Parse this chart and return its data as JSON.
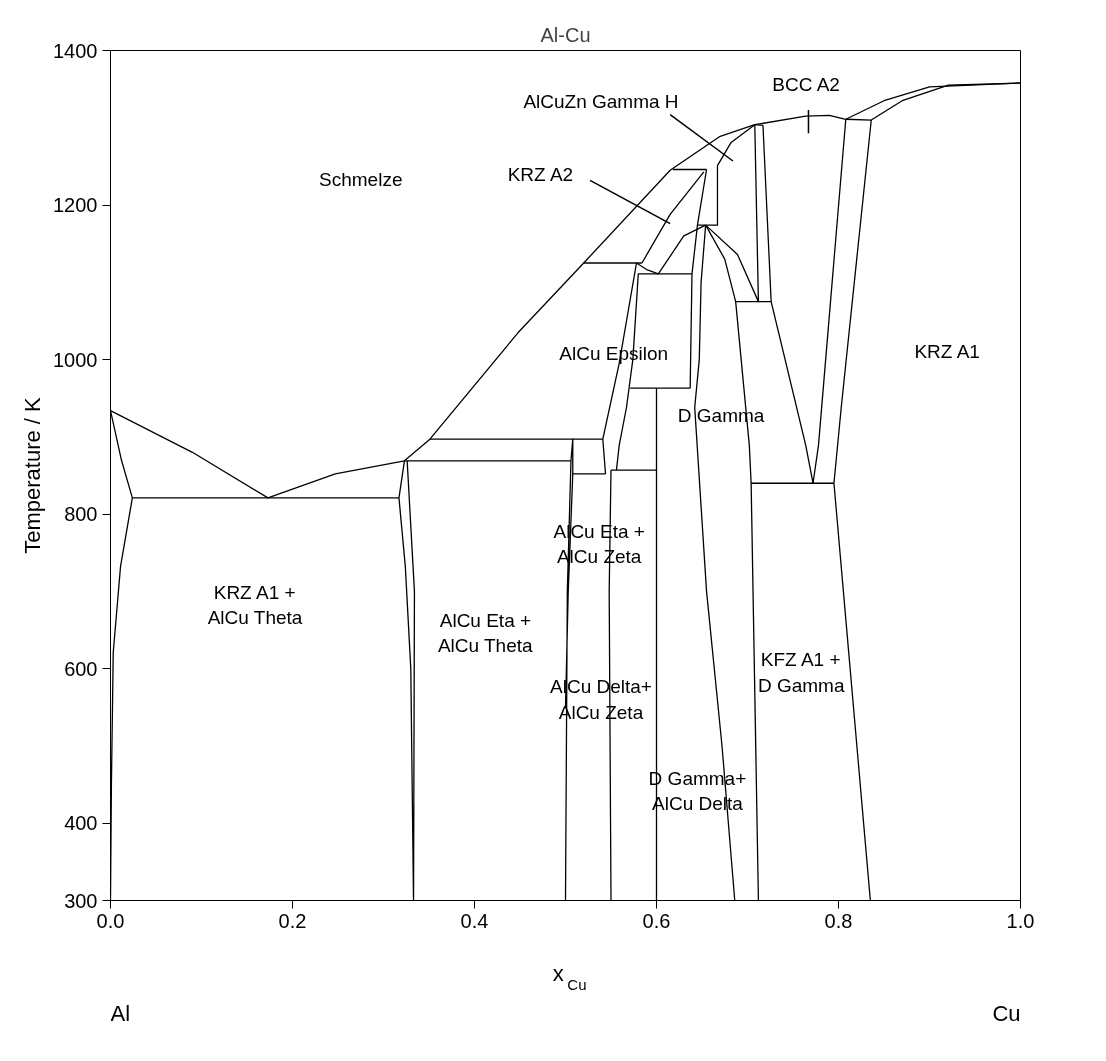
{
  "chart_data": {
    "type": "line",
    "title": "Al-Cu",
    "xlabel": "x$_{Cu}$",
    "ylabel": "Temperature / K",
    "xlim": [
      0,
      1
    ],
    "ylim": [
      300,
      1400
    ],
    "xticks": [
      {
        "value": 0,
        "label": "0.0"
      },
      0.2,
      0.4,
      0.6,
      0.8,
      {
        "value": 1,
        "label": "1.0"
      }
    ],
    "yticks": [
      300,
      400,
      600,
      800,
      1000,
      1200,
      1400
    ],
    "grid": false,
    "series": [
      {
        "color": "#000000",
        "x": [
          0,
          0.09,
          0.173,
          0.247,
          0.323,
          0.351,
          0.448,
          0.52,
          0.615,
          0.67,
          0.708,
          0.764,
          0.79,
          0.808,
          0.85,
          0.9,
          1.0
        ],
        "values": [
          934,
          880,
          821,
          852,
          869,
          897,
          1035,
          1125,
          1245,
          1289,
          1304,
          1315,
          1316,
          1311,
          1335,
          1353,
          1358
        ]
      },
      {
        "color": "#000000",
        "x": [
          0,
          0.012,
          0.024,
          0.011,
          0.003,
          0.001,
          0
        ],
        "values": [
          934,
          870,
          821,
          732,
          621,
          450,
          300
        ]
      },
      {
        "color": "#000000",
        "x": [
          0.024,
          0.317
        ],
        "values": [
          821,
          821
        ]
      },
      {
        "color": "#000000",
        "x": [
          0.808,
          0.836,
          0.87,
          0.92,
          1.0
        ],
        "values": [
          1311,
          1310,
          1335,
          1355,
          1358
        ]
      },
      {
        "color": "#000000",
        "x": [
          0.323,
          0.317,
          0.324,
          0.33,
          0.333,
          0.334,
          0.326
        ],
        "values": [
          869,
          821,
          732,
          600,
          300,
          700,
          869
        ]
      },
      {
        "color": "#000000",
        "x": [
          0.323,
          0.506
        ],
        "values": [
          869,
          869
        ]
      },
      {
        "color": "#000000",
        "x": [
          0.351,
          0.541
        ],
        "values": [
          897,
          897
        ]
      },
      {
        "color": "#000000",
        "x": [
          0.5,
          0.502,
          0.506,
          0.508,
          0.508,
          0.503,
          0.5
        ],
        "values": [
          300,
          700,
          869,
          897,
          852,
          700,
          550
        ]
      },
      {
        "color": "#000000",
        "x": [
          0.508,
          0.544
        ],
        "values": [
          852,
          852
        ]
      },
      {
        "color": "#000000",
        "x": [
          0.544,
          0.541,
          0.559,
          0.578
        ],
        "values": [
          852,
          897,
          995,
          1125
        ]
      },
      {
        "color": "#000000",
        "x": [
          0.55,
          0.6
        ],
        "values": [
          857,
          857
        ]
      },
      {
        "color": "#000000",
        "x": [
          0.55,
          0.548,
          0.55
        ],
        "values": [
          857,
          700,
          300
        ]
      },
      {
        "color": "#000000",
        "x": [
          0.6,
          0.6
        ],
        "values": [
          963,
          300
        ]
      },
      {
        "color": "#000000",
        "x": [
          0.556,
          0.559,
          0.567,
          0.574,
          0.58,
          0.639
        ],
        "values": [
          857,
          889,
          938,
          1000,
          1111,
          1111
        ]
      },
      {
        "color": "#000000",
        "x": [
          0.571,
          0.637
        ],
        "values": [
          963,
          963
        ]
      },
      {
        "color": "#000000",
        "x": [
          0.655,
          0.645,
          0.639,
          0.637
        ],
        "values": [
          1246,
          1174,
          1111,
          963
        ]
      },
      {
        "color": "#000000",
        "x": [
          0.52,
          0.584
        ],
        "values": [
          1125,
          1125
        ]
      },
      {
        "color": "#000000",
        "x": [
          0.578,
          0.59,
          0.602,
          0.63,
          0.654
        ],
        "values": [
          1125,
          1116,
          1111,
          1160,
          1174
        ]
      },
      {
        "color": "#000000",
        "x": [
          0.584,
          0.615,
          0.652
        ],
        "values": [
          1125,
          1188,
          1243
        ]
      },
      {
        "color": "#000000",
        "x": [
          0.618,
          0.655
        ],
        "values": [
          1246,
          1246
        ]
      },
      {
        "color": "#000000",
        "x": [
          0.645,
          0.667,
          0.667,
          0.682,
          0.708
        ],
        "values": [
          1174,
          1174,
          1251,
          1281,
          1304
        ]
      },
      {
        "color": "#000000",
        "x": [
          0.654,
          0.649,
          0.647,
          0.642,
          0.655,
          0.672,
          0.686
        ],
        "values": [
          1174,
          1100,
          1000,
          938,
          700,
          500,
          300
        ]
      },
      {
        "color": "#000000",
        "x": [
          0.654,
          0.689,
          0.712,
          0.708,
          0.717,
          0.726,
          0.764,
          0.772
        ],
        "values": [
          1174,
          1136,
          1075,
          1304,
          1303,
          1075,
          889,
          840
        ]
      },
      {
        "color": "#000000",
        "x": [
          0.654,
          0.675,
          0.687,
          0.702,
          0.704,
          0.712
        ],
        "values": [
          1174,
          1130,
          1075,
          889,
          840,
          300
        ]
      },
      {
        "color": "#000000",
        "x": [
          0.687,
          0.726
        ],
        "values": [
          1075,
          1075
        ]
      },
      {
        "color": "#000000",
        "x": [
          0.808,
          0.778,
          0.772
        ],
        "values": [
          1311,
          889,
          840
        ]
      },
      {
        "color": "#000000",
        "x": [
          0.836,
          0.803,
          0.795,
          0.835
        ],
        "values": [
          1310,
          938,
          840,
          300
        ]
      },
      {
        "color": "#000000",
        "x": [
          0.704,
          0.795
        ],
        "values": [
          840,
          840
        ]
      }
    ],
    "annotations": [
      "Schmelze",
      {
        "text": "KRZ A2",
        "x": 0.615,
        "y": 1176
      },
      "AlCuZn Gamma H",
      "BCC A2",
      "AlCu Epsilon",
      "D Gamma",
      "KRZ A1",
      "AlCu Eta +\nAlCu Zeta",
      "KRZ A1 +\nAlCu Theta",
      "AlCu Eta +\nAlCu Theta",
      "AlCu Delta+\nAlCu Zeta",
      "KFZ A1 +\nD Gamma",
      "D Gamma+\nAlCu Delta",
      "Al",
      "Cu"
    ]
  }
}
